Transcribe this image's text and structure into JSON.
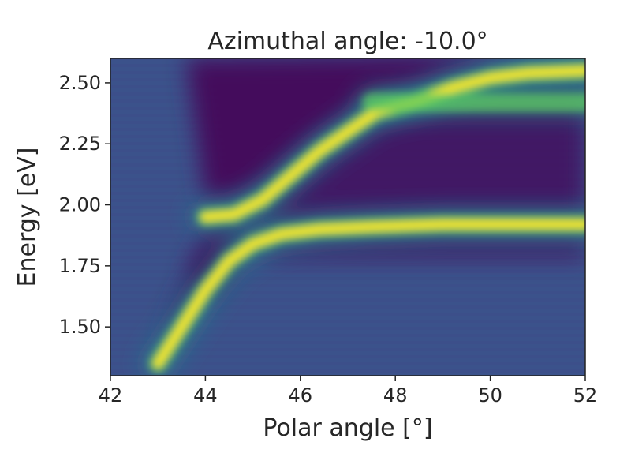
{
  "chart_data": {
    "type": "heatmap",
    "title": "Azimuthal angle: -10.0°",
    "xlabel": "Polar angle [°]",
    "ylabel": "Energy [eV]",
    "xlim": [
      42,
      52
    ],
    "ylim": [
      1.3,
      2.6
    ],
    "x_ticks": [
      "42",
      "44",
      "46",
      "48",
      "50",
      "52"
    ],
    "y_ticks": [
      "1.50",
      "1.75",
      "2.00",
      "2.25",
      "2.50"
    ],
    "colormap": "viridis",
    "grid": false,
    "colors": {
      "low": "#440154",
      "background": "#3b528b",
      "mid": "#21918c",
      "high_mid": "#5ec962",
      "high": "#fde725"
    },
    "branches": [
      {
        "name": "upper-polariton",
        "points": [
          [
            44.0,
            1.95
          ],
          [
            44.6,
            1.96
          ],
          [
            45.2,
            2.02
          ],
          [
            45.8,
            2.12
          ],
          [
            46.4,
            2.22
          ],
          [
            47.0,
            2.3
          ],
          [
            47.6,
            2.38
          ],
          [
            48.4,
            2.42
          ],
          [
            49.2,
            2.48
          ],
          [
            50.0,
            2.52
          ],
          [
            50.8,
            2.54
          ],
          [
            52.0,
            2.55
          ]
        ]
      },
      {
        "name": "lower-polariton",
        "points": [
          [
            43.0,
            1.35
          ],
          [
            43.5,
            1.5
          ],
          [
            44.0,
            1.65
          ],
          [
            44.5,
            1.77
          ],
          [
            45.0,
            1.84
          ],
          [
            45.6,
            1.88
          ],
          [
            46.4,
            1.9
          ],
          [
            47.5,
            1.91
          ],
          [
            49.0,
            1.92
          ],
          [
            52.0,
            1.92
          ]
        ]
      },
      {
        "name": "flat-band-2.42",
        "points": [
          [
            47.5,
            2.42
          ],
          [
            52.0,
            2.42
          ]
        ]
      }
    ]
  }
}
